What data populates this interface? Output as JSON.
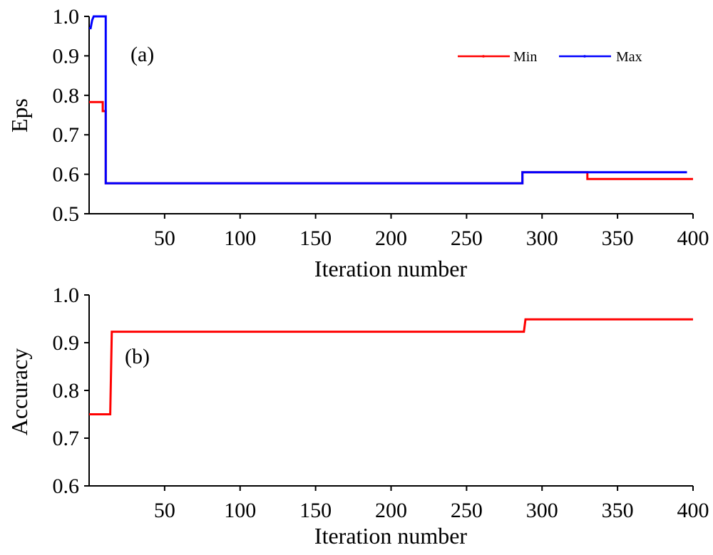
{
  "chart_data": [
    {
      "type": "line",
      "panel_label": "(a)",
      "xlabel": "Iteration number",
      "ylabel": "Eps",
      "xlim": [
        0,
        400
      ],
      "ylim": [
        0.5,
        1.0
      ],
      "xticks": [
        50,
        100,
        150,
        200,
        250,
        300,
        350,
        400
      ],
      "xtick_labels": [
        "50",
        "100",
        "150",
        "200",
        "250",
        "300",
        "350",
        "400"
      ],
      "yticks": [
        0.5,
        0.6,
        0.7,
        0.8,
        0.9,
        1.0
      ],
      "ytick_labels": [
        "0.5",
        "0.6",
        "0.7",
        "0.8",
        "0.9",
        "1.0"
      ],
      "grid": false,
      "legend": "top-right",
      "series": [
        {
          "name": "Min",
          "color": "#ff0000",
          "x": [
            0,
            9,
            9,
            10,
            11,
            11,
            287,
            287,
            330,
            330,
            400
          ],
          "y": [
            0.783,
            0.783,
            0.76,
            0.76,
            0.76,
            0.577,
            0.577,
            0.605,
            0.605,
            0.588,
            0.588
          ]
        },
        {
          "name": "Max",
          "color": "#0000ff",
          "x": [
            0,
            1,
            2,
            3,
            3,
            10,
            11,
            11,
            287,
            287,
            396
          ],
          "y": [
            0.97,
            0.97,
            0.99,
            1.0,
            1.0,
            1.0,
            1.0,
            0.577,
            0.577,
            0.605,
            0.605
          ]
        }
      ]
    },
    {
      "type": "line",
      "panel_label": "(b)",
      "xlabel": "Iteration number",
      "ylabel": "Accuracy",
      "xlim": [
        0,
        400
      ],
      "ylim": [
        0.6,
        1.0
      ],
      "xticks": [
        50,
        100,
        150,
        200,
        250,
        300,
        350,
        400
      ],
      "xtick_labels": [
        "50",
        "100",
        "150",
        "200",
        "250",
        "300",
        "350",
        "400"
      ],
      "yticks": [
        0.6,
        0.7,
        0.8,
        0.9,
        1.0
      ],
      "ytick_labels": [
        "0.6",
        "0.7",
        "0.8",
        "0.9",
        "1.0"
      ],
      "grid": false,
      "series": [
        {
          "color": "#ff0000",
          "x": [
            0,
            14,
            15,
            288,
            289,
            400
          ],
          "y": [
            0.75,
            0.75,
            0.923,
            0.923,
            0.949,
            0.949
          ]
        }
      ]
    }
  ]
}
